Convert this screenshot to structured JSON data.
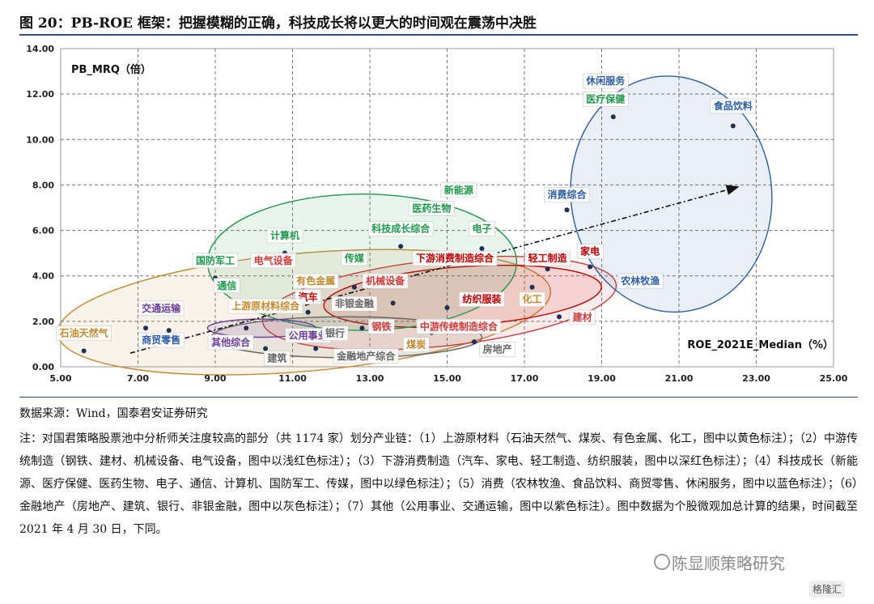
{
  "title": "图 20：PB-ROE 框架：把握模糊的正确，科技成长将以更大的时间观在震荡中决胜",
  "source": "数据来源：Wind，国泰君安证券研究",
  "note": "注：对国君策略股票池中分析师关注度较高的部分（共 1174 家）划分产业链：（1）上游原材料（石油天然气、煤炭、有色金属、化工，图中以黄色标注）；（2）中游传统制造（钢铁、建材、机械设备、电气设备，图中以浅红色标注）；（3）下游消费制造（汽车、家电、轻工制造、纺织服装，图中以深红色标注）；（4）科技成长（新能源、医疗保健、医药生物、电子、通信、计算机、国防军工、传媒，图中以绿色标注）；（5）消费（农林牧渔、食品饮料、商贸零售、休闲服务，图中以蓝色标注）；（6）金融地产（房地产、建筑、银行、非银金融，图中以灰色标注）；（7）其他（公用事业、交通运输，图中以紫色标注）。图中数据为个股微观加总计算的结果，时间截至 2021 年 4 月 30 日，下同。",
  "watermark": "陈显顺策略研究",
  "watermark2": "格隆汇",
  "colors": {
    "upstream": "#c58a2e",
    "midstream": "#d33a3a",
    "downstream": "#c00000",
    "tech": "#1e9a4a",
    "consumer": "#2c5ea8",
    "finance": "#666666",
    "other": "#6a3d9a"
  },
  "chart_data": {
    "type": "scatter",
    "ylabel": "PB_MRQ（倍）",
    "xlabel": "ROE_2021E_Median（%）",
    "xlim": [
      5.0,
      25.0
    ],
    "ylim": [
      0.0,
      14.0
    ],
    "x_ticks": [
      "5.00",
      "7.00",
      "9.00",
      "11.00",
      "13.00",
      "15.00",
      "17.00",
      "19.00",
      "21.00",
      "23.00",
      "25.00"
    ],
    "y_ticks": [
      "0.00",
      "2.00",
      "4.00",
      "6.00",
      "8.00",
      "10.00",
      "12.00",
      "14.00"
    ],
    "grid": true,
    "trend_arrow": {
      "from": [
        6.8,
        0.6
      ],
      "to": [
        22.5,
        7.9
      ]
    },
    "groups": [
      {
        "group": "upstream",
        "ellipse": {
          "cx": 11.3,
          "cy": 2.4,
          "rx": 6.4,
          "ry": 2.6,
          "rotate_deg": -5
        }
      },
      {
        "group": "midstream",
        "ellipse": {
          "cx": 14.8,
          "cy": 2.8,
          "rx": 4.6,
          "ry": 1.9,
          "rotate_deg": -6
        }
      },
      {
        "group": "downstream",
        "ellipse": {
          "cx": 15.4,
          "cy": 3.1,
          "rx": 3.6,
          "ry": 1.3,
          "rotate_deg": -4
        }
      },
      {
        "group": "tech",
        "ellipse": {
          "cx": 12.8,
          "cy": 4.6,
          "rx": 4.0,
          "ry": 3.0,
          "rotate_deg": 0
        }
      },
      {
        "group": "consumer",
        "ellipse": {
          "cx": 20.8,
          "cy": 7.6,
          "rx": 2.6,
          "ry": 5.2,
          "rotate_deg": -6
        }
      },
      {
        "group": "finance",
        "ellipse": {
          "cx": 12.4,
          "cy": 1.3,
          "rx": 3.5,
          "ry": 0.9,
          "rotate_deg": 0
        }
      },
      {
        "group": "other",
        "ellipse": {
          "cx": 10.2,
          "cy": 1.7,
          "rx": 1.4,
          "ry": 0.4,
          "rotate_deg": 0
        }
      }
    ],
    "points": [
      {
        "name": "休闲服务",
        "x": 19.3,
        "y": 12.5,
        "group": "consumer",
        "lx": 19.1,
        "ly": 12.5,
        "no_marker": true
      },
      {
        "name": "医疗保健",
        "x": 19.3,
        "y": 11.0,
        "group": "tech",
        "lx": 19.1,
        "ly": 11.7
      },
      {
        "name": "食品饮料",
        "x": 22.4,
        "y": 10.6,
        "group": "consumer",
        "lx": 22.4,
        "ly": 11.4
      },
      {
        "name": "消费综合",
        "x": 18.1,
        "y": 6.9,
        "group": "consumer",
        "lx": 18.1,
        "ly": 7.5
      },
      {
        "name": "新能源",
        "x": 15.5,
        "y": 7.8,
        "group": "tech",
        "lx": 15.3,
        "ly": 7.7,
        "no_marker": true
      },
      {
        "name": "医药生物",
        "x": 14.6,
        "y": 6.9,
        "group": "tech",
        "lx": 14.6,
        "ly": 6.9,
        "no_marker": true
      },
      {
        "name": "科技成长综合",
        "x": 13.8,
        "y": 5.3,
        "group": "tech",
        "lx": 13.8,
        "ly": 6.0
      },
      {
        "name": "电子",
        "x": 15.9,
        "y": 5.2,
        "group": "tech",
        "lx": 15.9,
        "ly": 6.0
      },
      {
        "name": "计算机",
        "x": 10.8,
        "y": 5.0,
        "group": "tech",
        "lx": 10.8,
        "ly": 5.7
      },
      {
        "name": "国防军工",
        "x": 9.0,
        "y": 3.9,
        "group": "tech",
        "lx": 9.0,
        "ly": 4.6
      },
      {
        "name": "电气设备",
        "x": 10.5,
        "y": 4.1,
        "group": "midstream",
        "lx": 10.5,
        "ly": 4.6,
        "no_marker": true
      },
      {
        "name": "通信",
        "x": 9.7,
        "y": 3.4,
        "group": "tech",
        "lx": 9.3,
        "ly": 3.5,
        "no_marker": true
      },
      {
        "name": "传媒",
        "x": 12.6,
        "y": 3.5,
        "group": "tech",
        "lx": 12.6,
        "ly": 4.7
      },
      {
        "name": "下游消费制造综合",
        "x": 15.2,
        "y": 4.7,
        "group": "downstream",
        "lx": 15.2,
        "ly": 4.7,
        "no_marker": true
      },
      {
        "name": "轻工制造",
        "x": 17.6,
        "y": 4.3,
        "group": "downstream",
        "lx": 17.6,
        "ly": 4.7
      },
      {
        "name": "家电",
        "x": 18.7,
        "y": 4.4,
        "group": "downstream",
        "lx": 18.7,
        "ly": 5.0
      },
      {
        "name": "农林牧渔",
        "x": 19.5,
        "y": 3.9,
        "group": "consumer",
        "lx": 20.0,
        "ly": 3.7
      },
      {
        "name": "有色金属",
        "x": 11.6,
        "y": 3.6,
        "group": "upstream",
        "lx": 11.6,
        "ly": 3.7,
        "no_marker": true
      },
      {
        "name": "机械设备",
        "x": 13.6,
        "y": 2.8,
        "group": "midstream",
        "lx": 13.4,
        "ly": 3.7
      },
      {
        "name": "汽车",
        "x": 11.4,
        "y": 2.4,
        "group": "downstream",
        "lx": 11.4,
        "ly": 3.0
      },
      {
        "name": "非银金融",
        "x": 12.8,
        "y": 2.9,
        "group": "finance",
        "lx": 12.6,
        "ly": 2.7,
        "no_marker": true
      },
      {
        "name": "纺织服装",
        "x": 15.0,
        "y": 2.6,
        "group": "downstream",
        "lx": 15.9,
        "ly": 2.9
      },
      {
        "name": "化工",
        "x": 17.2,
        "y": 3.5,
        "group": "upstream",
        "lx": 17.2,
        "ly": 2.9
      },
      {
        "name": "建材",
        "x": 17.9,
        "y": 2.2,
        "group": "midstream",
        "lx": 18.5,
        "ly": 2.1
      },
      {
        "name": "上游原材料综合",
        "x": 10.3,
        "y": 2.5,
        "group": "upstream",
        "lx": 10.3,
        "ly": 2.6,
        "no_marker": true
      },
      {
        "name": "交通运输",
        "x": 7.2,
        "y": 1.7,
        "group": "other",
        "lx": 7.6,
        "ly": 2.5
      },
      {
        "name": "石油天然气",
        "x": 5.6,
        "y": 0.7,
        "group": "upstream",
        "lx": 5.6,
        "ly": 1.4
      },
      {
        "name": "商贸零售",
        "x": 7.8,
        "y": 1.6,
        "group": "consumer",
        "lx": 7.6,
        "ly": 1.1
      },
      {
        "name": "其他综合",
        "x": 9.8,
        "y": 1.7,
        "group": "other",
        "lx": 9.4,
        "ly": 1.0
      },
      {
        "name": "公用事业",
        "x": 10.9,
        "y": 1.5,
        "group": "other",
        "lx": 11.4,
        "ly": 1.3
      },
      {
        "name": "钢铁",
        "x": 12.8,
        "y": 1.7,
        "group": "midstream",
        "lx": 13.3,
        "ly": 1.7
      },
      {
        "name": "中游传统制造综合",
        "x": 14.2,
        "y": 1.7,
        "group": "midstream",
        "lx": 15.3,
        "ly": 1.7,
        "no_marker": true
      },
      {
        "name": "银行",
        "x": 12.4,
        "y": 1.3,
        "group": "finance",
        "lx": 12.1,
        "ly": 1.4,
        "no_marker": true
      },
      {
        "name": "煤炭",
        "x": 14.6,
        "y": 1.5,
        "group": "upstream",
        "lx": 14.2,
        "ly": 0.9
      },
      {
        "name": "房地产",
        "x": 15.7,
        "y": 1.1,
        "group": "finance",
        "lx": 16.3,
        "ly": 0.7
      },
      {
        "name": "建筑",
        "x": 10.3,
        "y": 0.8,
        "group": "finance",
        "lx": 10.6,
        "ly": 0.3
      },
      {
        "name": "金融地产综合",
        "x": 11.6,
        "y": 0.8,
        "group": "finance",
        "lx": 12.9,
        "ly": 0.4
      }
    ]
  }
}
